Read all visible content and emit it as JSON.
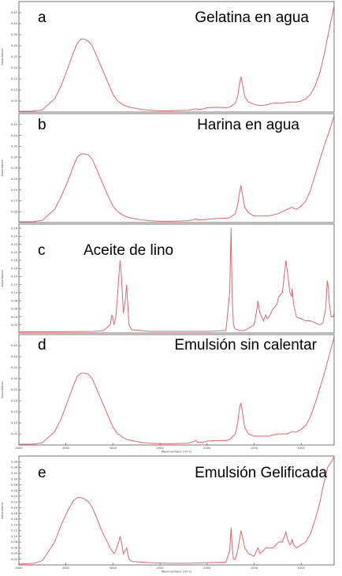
{
  "chart_data": [
    {
      "type": "line",
      "letter": "a",
      "title": "Gelatina en agua",
      "ylabel": "Absorbance",
      "xlim": [
        4000,
        650
      ],
      "ylim": [
        0,
        0.5
      ],
      "yticks": [
        0.05,
        0.1,
        0.15,
        0.2,
        0.25,
        0.3,
        0.35,
        0.4,
        0.45
      ],
      "xticks": [],
      "xlabel": "",
      "color": "#e8636a",
      "series": [
        {
          "x": [
            4000,
            3850,
            3750,
            3700,
            3620,
            3550,
            3480,
            3420,
            3380,
            3340,
            3300,
            3260,
            3220,
            3180,
            3120,
            3060,
            3000,
            2950,
            2900,
            2850,
            2800,
            2700,
            2600,
            2500,
            2400,
            2300,
            2200,
            2150,
            2120,
            2100,
            2050,
            2000,
            1900,
            1800,
            1760,
            1700,
            1675,
            1655,
            1640,
            1625,
            1600,
            1560,
            1500,
            1450,
            1400,
            1350,
            1300,
            1250,
            1200,
            1150,
            1100,
            1050,
            1000,
            950,
            900,
            850,
            800,
            750,
            700,
            650
          ],
          "y": [
            0.003,
            0.004,
            0.01,
            0.03,
            0.06,
            0.12,
            0.2,
            0.27,
            0.31,
            0.33,
            0.33,
            0.32,
            0.3,
            0.26,
            0.2,
            0.14,
            0.08,
            0.05,
            0.035,
            0.025,
            0.02,
            0.012,
            0.008,
            0.006,
            0.006,
            0.007,
            0.008,
            0.012,
            0.015,
            0.012,
            0.013,
            0.02,
            0.022,
            0.02,
            0.022,
            0.04,
            0.07,
            0.13,
            0.16,
            0.13,
            0.07,
            0.045,
            0.035,
            0.03,
            0.03,
            0.035,
            0.04,
            0.04,
            0.04,
            0.045,
            0.045,
            0.045,
            0.05,
            0.06,
            0.08,
            0.12,
            0.18,
            0.27,
            0.38,
            0.48
          ]
        }
      ]
    },
    {
      "type": "line",
      "letter": "b",
      "title": "Harina en agua",
      "ylabel": "Absorbance",
      "xlim": [
        4000,
        650
      ],
      "ylim": [
        0,
        0.5
      ],
      "yticks": [
        0.05,
        0.1,
        0.15,
        0.2,
        0.25,
        0.3,
        0.35,
        0.4,
        0.45
      ],
      "xticks": [],
      "xlabel": "",
      "color": "#e8636a",
      "series": [
        {
          "x": [
            4000,
            3850,
            3750,
            3700,
            3620,
            3550,
            3480,
            3420,
            3380,
            3340,
            3300,
            3260,
            3220,
            3180,
            3120,
            3060,
            3000,
            2950,
            2900,
            2850,
            2800,
            2700,
            2600,
            2500,
            2400,
            2300,
            2200,
            2150,
            2120,
            2100,
            2050,
            2000,
            1900,
            1800,
            1760,
            1700,
            1675,
            1655,
            1640,
            1625,
            1600,
            1560,
            1500,
            1450,
            1400,
            1350,
            1300,
            1250,
            1200,
            1150,
            1100,
            1050,
            1000,
            950,
            900,
            850,
            800,
            750,
            700,
            650
          ],
          "y": [
            0.003,
            0.004,
            0.01,
            0.03,
            0.06,
            0.12,
            0.19,
            0.26,
            0.3,
            0.315,
            0.315,
            0.31,
            0.29,
            0.25,
            0.19,
            0.13,
            0.075,
            0.05,
            0.035,
            0.025,
            0.02,
            0.012,
            0.008,
            0.006,
            0.006,
            0.007,
            0.008,
            0.012,
            0.018,
            0.012,
            0.012,
            0.015,
            0.018,
            0.02,
            0.022,
            0.04,
            0.08,
            0.14,
            0.17,
            0.13,
            0.07,
            0.045,
            0.03,
            0.03,
            0.03,
            0.03,
            0.035,
            0.04,
            0.05,
            0.06,
            0.07,
            0.06,
            0.075,
            0.1,
            0.15,
            0.22,
            0.29,
            0.36,
            0.42,
            0.49
          ]
        }
      ]
    },
    {
      "type": "line",
      "letter": "c",
      "title": "Aceite de lino",
      "ylabel": "Absorbance",
      "xlim": [
        4000,
        650
      ],
      "ylim": [
        0,
        0.27
      ],
      "yticks": [
        0.02,
        0.04,
        0.06,
        0.08,
        0.1,
        0.12,
        0.14,
        0.16,
        0.18,
        0.2,
        0.22,
        0.24,
        0.26
      ],
      "xticks": [],
      "xlabel": "",
      "color": "#e8636a",
      "series": [
        {
          "x": [
            4000,
            3600,
            3200,
            3100,
            3030,
            3012,
            3000,
            2990,
            2970,
            2950,
            2935,
            2925,
            2910,
            2890,
            2870,
            2855,
            2845,
            2830,
            2800,
            2600,
            2400,
            2200,
            2000,
            1800,
            1760,
            1745,
            1735,
            1720,
            1700,
            1660,
            1600,
            1500,
            1470,
            1460,
            1440,
            1420,
            1400,
            1377,
            1360,
            1340,
            1300,
            1260,
            1238,
            1200,
            1162,
            1145,
            1120,
            1100,
            1097,
            1080,
            1050,
            1000,
            950,
            900,
            850,
            800,
            770,
            740,
            722,
            710,
            700,
            680,
            660,
            650
          ],
          "y": [
            0.003,
            0.003,
            0.004,
            0.006,
            0.02,
            0.045,
            0.035,
            0.02,
            0.04,
            0.1,
            0.15,
            0.18,
            0.14,
            0.05,
            0.08,
            0.12,
            0.08,
            0.02,
            0.008,
            0.004,
            0.004,
            0.004,
            0.004,
            0.006,
            0.1,
            0.26,
            0.1,
            0.02,
            0.01,
            0.006,
            0.006,
            0.02,
            0.06,
            0.08,
            0.05,
            0.04,
            0.03,
            0.045,
            0.035,
            0.04,
            0.06,
            0.07,
            0.09,
            0.1,
            0.18,
            0.15,
            0.1,
            0.09,
            0.11,
            0.07,
            0.04,
            0.035,
            0.03,
            0.03,
            0.025,
            0.02,
            0.025,
            0.06,
            0.13,
            0.11,
            0.07,
            0.04,
            0.04,
            0.05
          ]
        }
      ]
    },
    {
      "type": "line",
      "letter": "d",
      "title": "Emulsión sin calentar",
      "ylabel": "Absorbance",
      "xlim": [
        4000,
        650
      ],
      "ylim": [
        0,
        0.5
      ],
      "yticks": [
        0.05,
        0.1,
        0.15,
        0.2,
        0.25,
        0.3,
        0.35,
        0.4,
        0.45
      ],
      "xticks": [
        4000,
        3500,
        3000,
        2500,
        2000,
        1500,
        1000
      ],
      "xlabel": "Wavenumbers (cm-1)",
      "color": "#e8636a",
      "series": [
        {
          "x": [
            4000,
            3850,
            3750,
            3700,
            3620,
            3550,
            3480,
            3420,
            3380,
            3340,
            3300,
            3260,
            3220,
            3180,
            3120,
            3060,
            3000,
            2950,
            2925,
            2900,
            2850,
            2800,
            2700,
            2600,
            2500,
            2400,
            2300,
            2200,
            2150,
            2120,
            2100,
            2050,
            2000,
            1900,
            1800,
            1760,
            1700,
            1675,
            1655,
            1640,
            1625,
            1600,
            1560,
            1500,
            1450,
            1400,
            1350,
            1300,
            1250,
            1200,
            1150,
            1100,
            1050,
            1000,
            950,
            900,
            850,
            800,
            750,
            700,
            650
          ],
          "y": [
            0.003,
            0.004,
            0.01,
            0.03,
            0.06,
            0.12,
            0.2,
            0.27,
            0.31,
            0.325,
            0.325,
            0.32,
            0.3,
            0.26,
            0.2,
            0.14,
            0.08,
            0.05,
            0.045,
            0.035,
            0.025,
            0.02,
            0.012,
            0.008,
            0.006,
            0.006,
            0.007,
            0.008,
            0.015,
            0.02,
            0.012,
            0.012,
            0.018,
            0.02,
            0.02,
            0.025,
            0.05,
            0.1,
            0.17,
            0.19,
            0.15,
            0.08,
            0.05,
            0.04,
            0.04,
            0.04,
            0.04,
            0.045,
            0.05,
            0.05,
            0.05,
            0.06,
            0.06,
            0.07,
            0.09,
            0.13,
            0.19,
            0.26,
            0.33,
            0.41,
            0.49
          ]
        }
      ]
    },
    {
      "type": "line",
      "letter": "e",
      "title": "Emulsión Gelificada",
      "ylabel": "Absorbance",
      "xlim": [
        4000,
        650
      ],
      "ylim": [
        0,
        0.38
      ],
      "yticks": [
        0.02,
        0.04,
        0.06,
        0.08,
        0.1,
        0.12,
        0.14,
        0.16,
        0.18,
        0.2,
        0.22,
        0.24,
        0.26,
        0.28,
        0.3,
        0.32,
        0.34,
        0.36
      ],
      "xticks": [
        4000,
        3500,
        3000,
        2500,
        2000,
        1500,
        1000
      ],
      "xlabel": "Wavenumbers (cm-1)",
      "color": "#e8636a",
      "series": [
        {
          "x": [
            4000,
            3850,
            3750,
            3700,
            3620,
            3550,
            3480,
            3420,
            3380,
            3340,
            3300,
            3260,
            3220,
            3180,
            3120,
            3060,
            3030,
            3012,
            3000,
            2990,
            2970,
            2950,
            2935,
            2925,
            2910,
            2890,
            2870,
            2855,
            2845,
            2830,
            2800,
            2600,
            2400,
            2200,
            2000,
            1800,
            1760,
            1745,
            1735,
            1720,
            1700,
            1675,
            1655,
            1640,
            1625,
            1600,
            1560,
            1500,
            1460,
            1440,
            1400,
            1377,
            1300,
            1240,
            1200,
            1162,
            1145,
            1120,
            1100,
            1097,
            1080,
            1050,
            1000,
            950,
            900,
            850,
            800,
            770,
            740,
            720,
            700,
            680,
            660,
            650
          ],
          "y": [
            0.003,
            0.005,
            0.015,
            0.04,
            0.08,
            0.14,
            0.19,
            0.225,
            0.235,
            0.235,
            0.23,
            0.22,
            0.2,
            0.17,
            0.12,
            0.08,
            0.06,
            0.05,
            0.045,
            0.04,
            0.05,
            0.07,
            0.085,
            0.1,
            0.08,
            0.04,
            0.05,
            0.06,
            0.045,
            0.02,
            0.012,
            0.008,
            0.006,
            0.006,
            0.008,
            0.01,
            0.05,
            0.13,
            0.07,
            0.02,
            0.02,
            0.05,
            0.09,
            0.12,
            0.1,
            0.06,
            0.04,
            0.03,
            0.06,
            0.04,
            0.05,
            0.06,
            0.06,
            0.08,
            0.08,
            0.115,
            0.09,
            0.07,
            0.08,
            0.09,
            0.07,
            0.06,
            0.07,
            0.08,
            0.11,
            0.16,
            0.22,
            0.27,
            0.31,
            0.34,
            0.35,
            0.36,
            0.37,
            0.38
          ]
        }
      ]
    }
  ]
}
